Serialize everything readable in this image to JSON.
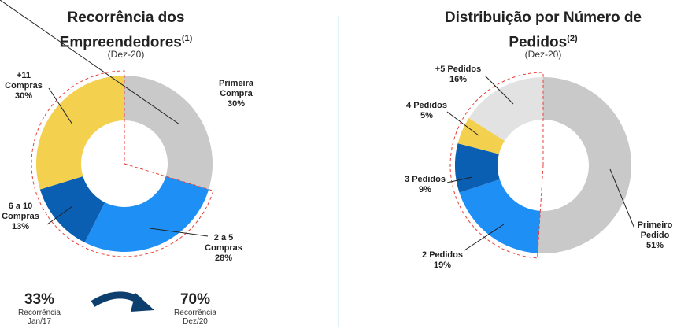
{
  "chart_data": [
    {
      "type": "pie",
      "title": "Recorrência dos Empreendedores",
      "title_note": "(1)",
      "subtitle": "(Dez-20)",
      "categories": [
        "Primeira Compra",
        "2 a 5 Compras",
        "6 a 10 Compras",
        "+11 Compras"
      ],
      "values": [
        30,
        28,
        13,
        30
      ],
      "value_labels": [
        "30%",
        "28%",
        "13%",
        "30%"
      ],
      "colors": [
        "#c9c9c9",
        "#1e90f5",
        "#0b5fb3",
        "#f3d14e"
      ],
      "annotations": [
        {
          "value": "33%",
          "label": "Recorrência Jan/17"
        },
        {
          "value": "70%",
          "label": "Recorrência Dez/20"
        }
      ]
    },
    {
      "type": "pie",
      "title": "Distribuição por Número de Pedidos",
      "title_note": "(2)",
      "subtitle": "(Dez-20)",
      "categories": [
        "Primeiro Pedido",
        "2 Pedidos",
        "3 Pedidos",
        "4 Pedidos",
        "+5 Pedidos"
      ],
      "values": [
        51,
        19,
        9,
        5,
        16
      ],
      "value_labels": [
        "51%",
        "19%",
        "9%",
        "5%",
        "16%"
      ],
      "colors": [
        "#c9c9c9",
        "#1e90f5",
        "#0b5fb3",
        "#f3d14e",
        "#e2e2e2"
      ]
    }
  ]
}
